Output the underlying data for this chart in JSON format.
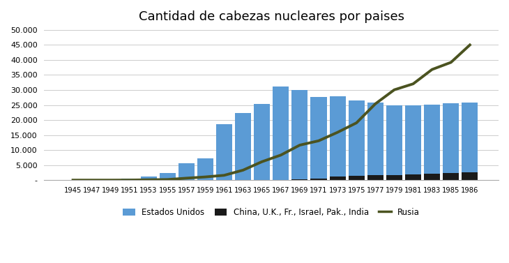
{
  "title": "Cantidad de cabezas nucleares por paises",
  "years": [
    1945,
    1947,
    1949,
    1951,
    1953,
    1955,
    1957,
    1959,
    1961,
    1963,
    1965,
    1967,
    1969,
    1971,
    1973,
    1975,
    1977,
    1979,
    1981,
    1983,
    1985,
    1986
  ],
  "usa": [
    6,
    32,
    170,
    438,
    1169,
    2422,
    5543,
    7345,
    18638,
    22229,
    25434,
    31255,
    29663,
    27235,
    26700,
    25099,
    24243,
    23031,
    22937,
    23135,
    23254,
    23254
  ],
  "others": [
    0,
    0,
    5,
    5,
    5,
    5,
    5,
    5,
    5,
    5,
    5,
    5,
    235,
    558,
    1100,
    1485,
    1670,
    1756,
    1880,
    2060,
    2350,
    2510
  ],
  "russia": [
    0,
    0,
    1,
    25,
    120,
    200,
    650,
    1060,
    1605,
    3322,
    6129,
    8339,
    11649,
    13092,
    15915,
    19055,
    25393,
    30062,
    32049,
    36831,
    39197,
    45000
  ],
  "bar_color_usa": "#5B9BD5",
  "bar_color_others": "#1a1a1a",
  "line_color_russia": "#4B5320",
  "background_color": "#FFFFFF",
  "ylim": [
    0,
    50000
  ],
  "yticks": [
    0,
    5000,
    10000,
    15000,
    20000,
    25000,
    30000,
    35000,
    40000,
    45000,
    50000
  ],
  "ytick_labels": [
    "-",
    "5.000",
    "10.000",
    "15.000",
    "20.000",
    "25.000",
    "30.000",
    "35.000",
    "40.000",
    "45.000",
    "50.000"
  ]
}
